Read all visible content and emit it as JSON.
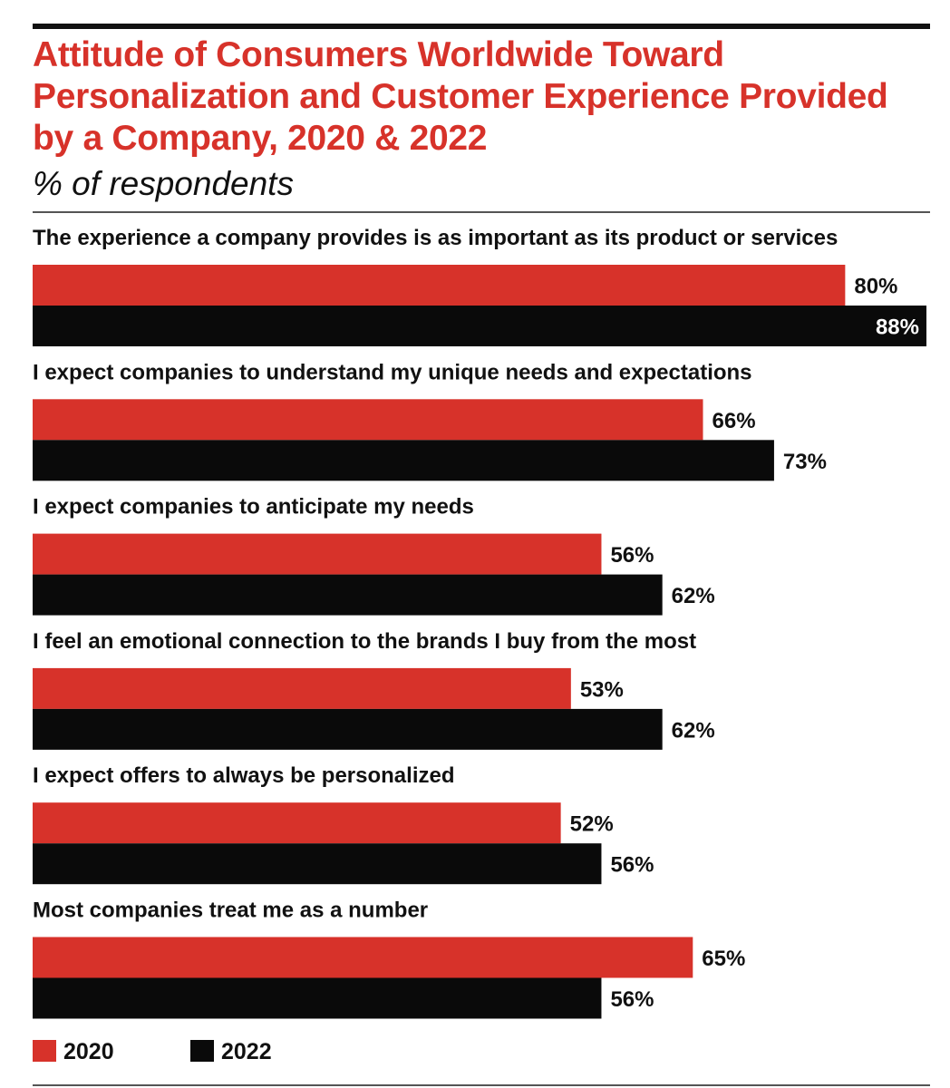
{
  "chart_data": {
    "type": "bar",
    "orientation": "horizontal",
    "title": "Attitude of Consumers Worldwide Toward Personalization and Customer Experience Provided by a Company, 2020 & 2022",
    "subtitle": "% of respondents",
    "unit": "%",
    "xlim": [
      0,
      88
    ],
    "grid": false,
    "legend": "bottom-left",
    "categories": [
      "The experience a company provides is as important as its product or services",
      "I expect companies to understand my unique needs and expectations",
      "I expect companies to anticipate my needs",
      "I feel an emotional connection to the brands I buy from the most",
      "I expect offers to always be personalized",
      "Most companies treat me as a number"
    ],
    "series": [
      {
        "name": "2020",
        "color": "#D7322A",
        "values": [
          80,
          66,
          56,
          53,
          52,
          65
        ]
      },
      {
        "name": "2022",
        "color": "#0A0A0A",
        "values": [
          88,
          73,
          62,
          62,
          56,
          56
        ]
      }
    ]
  }
}
